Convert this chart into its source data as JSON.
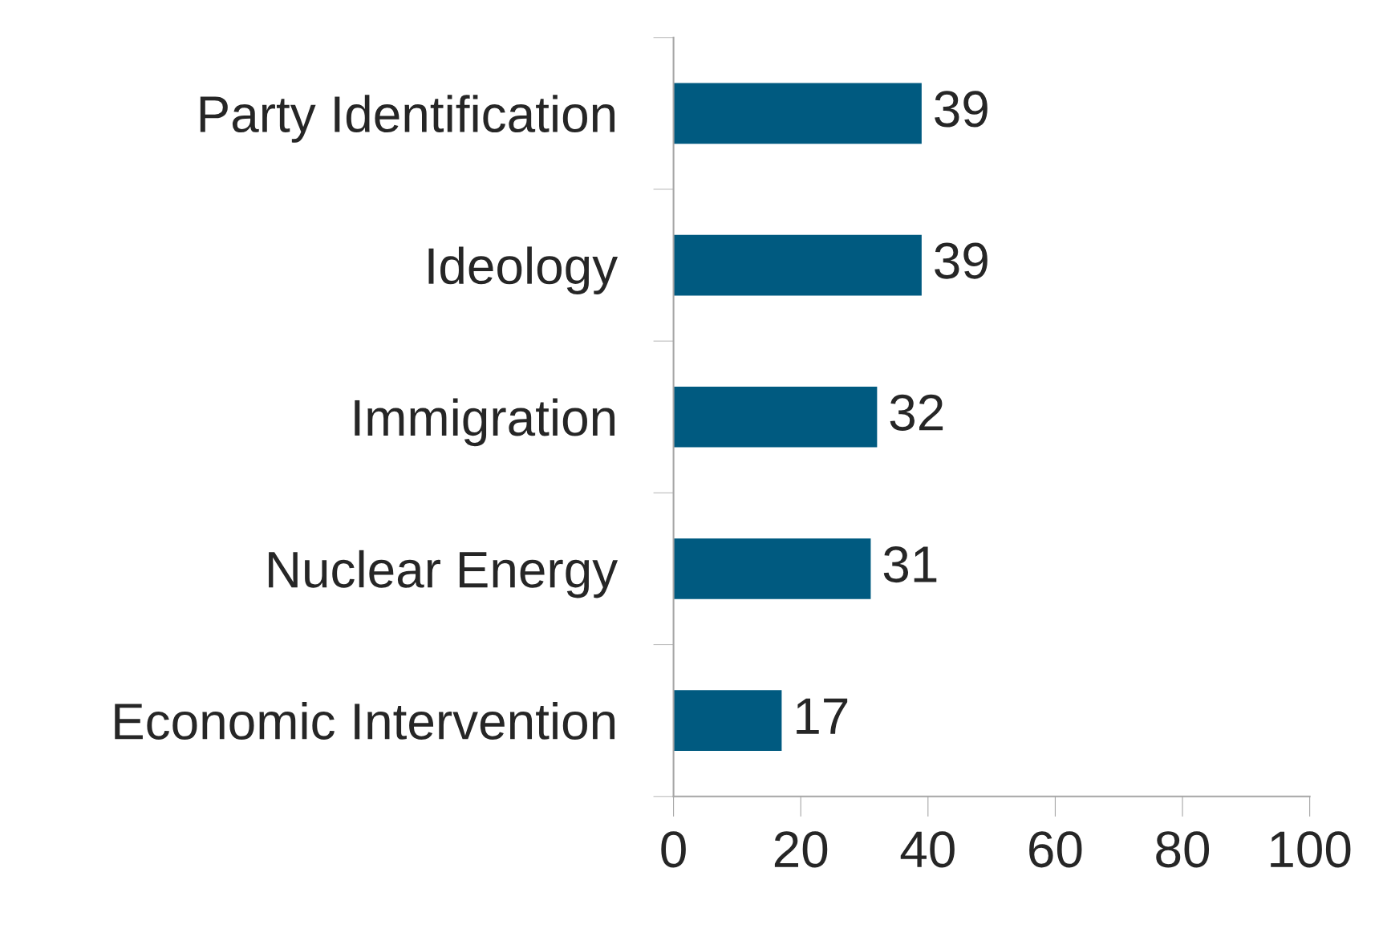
{
  "chart_data": {
    "type": "bar",
    "orientation": "horizontal",
    "categories": [
      "Party Identification",
      "Ideology",
      "Immigration",
      "Nuclear Energy",
      "Economic Intervention"
    ],
    "values": [
      39,
      39,
      32,
      31,
      17
    ],
    "color": "#005a80",
    "xlim": [
      0,
      100
    ],
    "xticks": [
      0,
      20,
      40,
      60,
      80,
      100
    ],
    "data_labels": true,
    "grid": false,
    "legend": false
  }
}
